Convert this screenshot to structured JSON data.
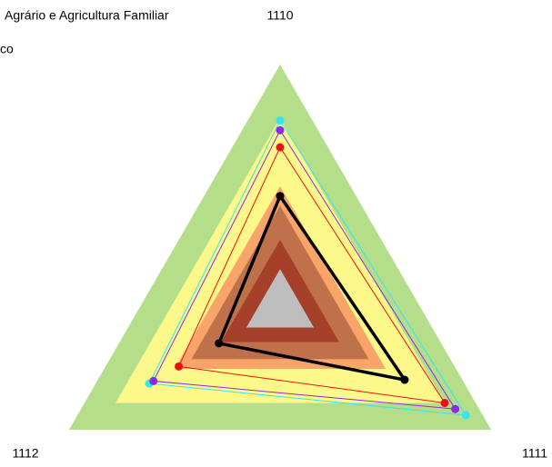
{
  "chart_data": {
    "type": "radar",
    "title": "Agrário e Agricultura Familiar",
    "subtitle": "co",
    "categories": [
      "1110",
      "1111",
      "1112"
    ],
    "ylim": [
      0,
      100
    ],
    "bands": [
      {
        "color": "#b5de8a",
        "value": 100
      },
      {
        "color": "#fdf88a",
        "value": 78
      },
      {
        "color": "#f9a56a",
        "value": 50
      },
      {
        "color": "#bf724a",
        "value": 42
      },
      {
        "color": "#a5402a",
        "value": 28
      },
      {
        "color": "#bebebe",
        "value": 16
      }
    ],
    "series": [
      {
        "color": "#33e6f0",
        "values": [
          77,
          88,
          62
        ]
      },
      {
        "color": "#8a2be2",
        "values": [
          73,
          83,
          60
        ]
      },
      {
        "color": "#ee1111",
        "values": [
          66,
          78,
          48
        ]
      },
      {
        "color": "#000000",
        "values": [
          46,
          59,
          29
        ]
      }
    ]
  }
}
